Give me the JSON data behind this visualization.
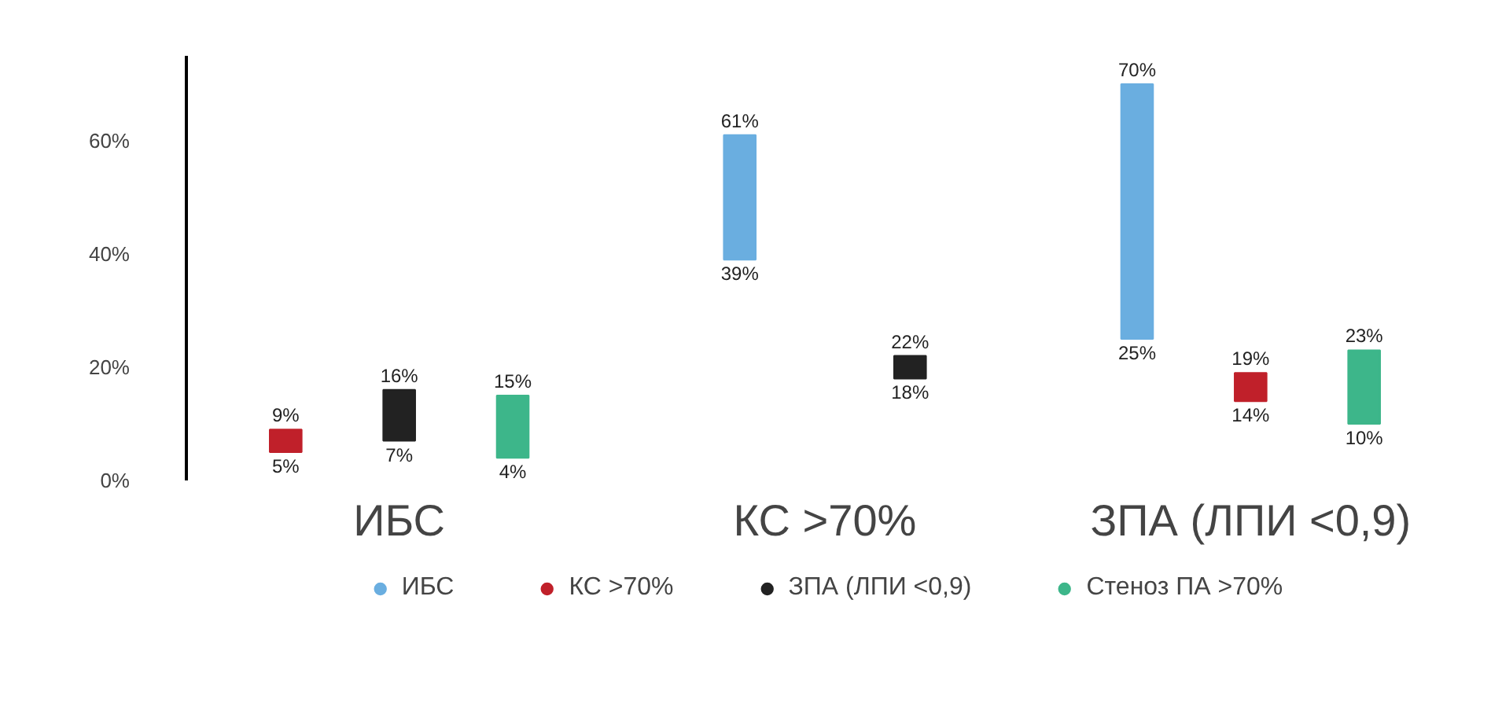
{
  "chart_data": {
    "type": "bar",
    "categories": [
      "ИБС",
      "КС >70%",
      "ЗПА (ЛПИ <0,9)"
    ],
    "ylim": [
      0,
      75
    ],
    "yticks": [
      {
        "value": 0,
        "label": "0%"
      },
      {
        "value": 20,
        "label": "20%"
      },
      {
        "value": 40,
        "label": "40%"
      },
      {
        "value": 60,
        "label": "60%"
      }
    ],
    "legend": "bottom",
    "series": [
      {
        "name": "ИБС",
        "color": "#6aaee0",
        "values": [
          null,
          22,
          45
        ],
        "base": [
          null,
          39,
          25
        ]
      },
      {
        "name": "КС >70%",
        "color": "#c0202a",
        "values": [
          4,
          null,
          5
        ],
        "base": [
          5,
          null,
          14
        ]
      },
      {
        "name": "ЗПА (ЛПИ <0,9)",
        "color": "#222222",
        "values": [
          9,
          4,
          null
        ],
        "base": [
          7,
          18,
          null
        ]
      },
      {
        "name": "Стеноз ПА >70%",
        "color": "#3db68a",
        "values": [
          11,
          null,
          13
        ],
        "base": [
          4,
          null,
          10
        ]
      }
    ],
    "annotations": [
      "9%",
      "5%",
      "16%",
      "7%",
      "15%",
      "4%",
      "61%",
      "39%",
      "22%",
      "18%",
      "70%",
      "25%",
      "19%",
      "14%",
      "23%",
      "10%"
    ]
  }
}
